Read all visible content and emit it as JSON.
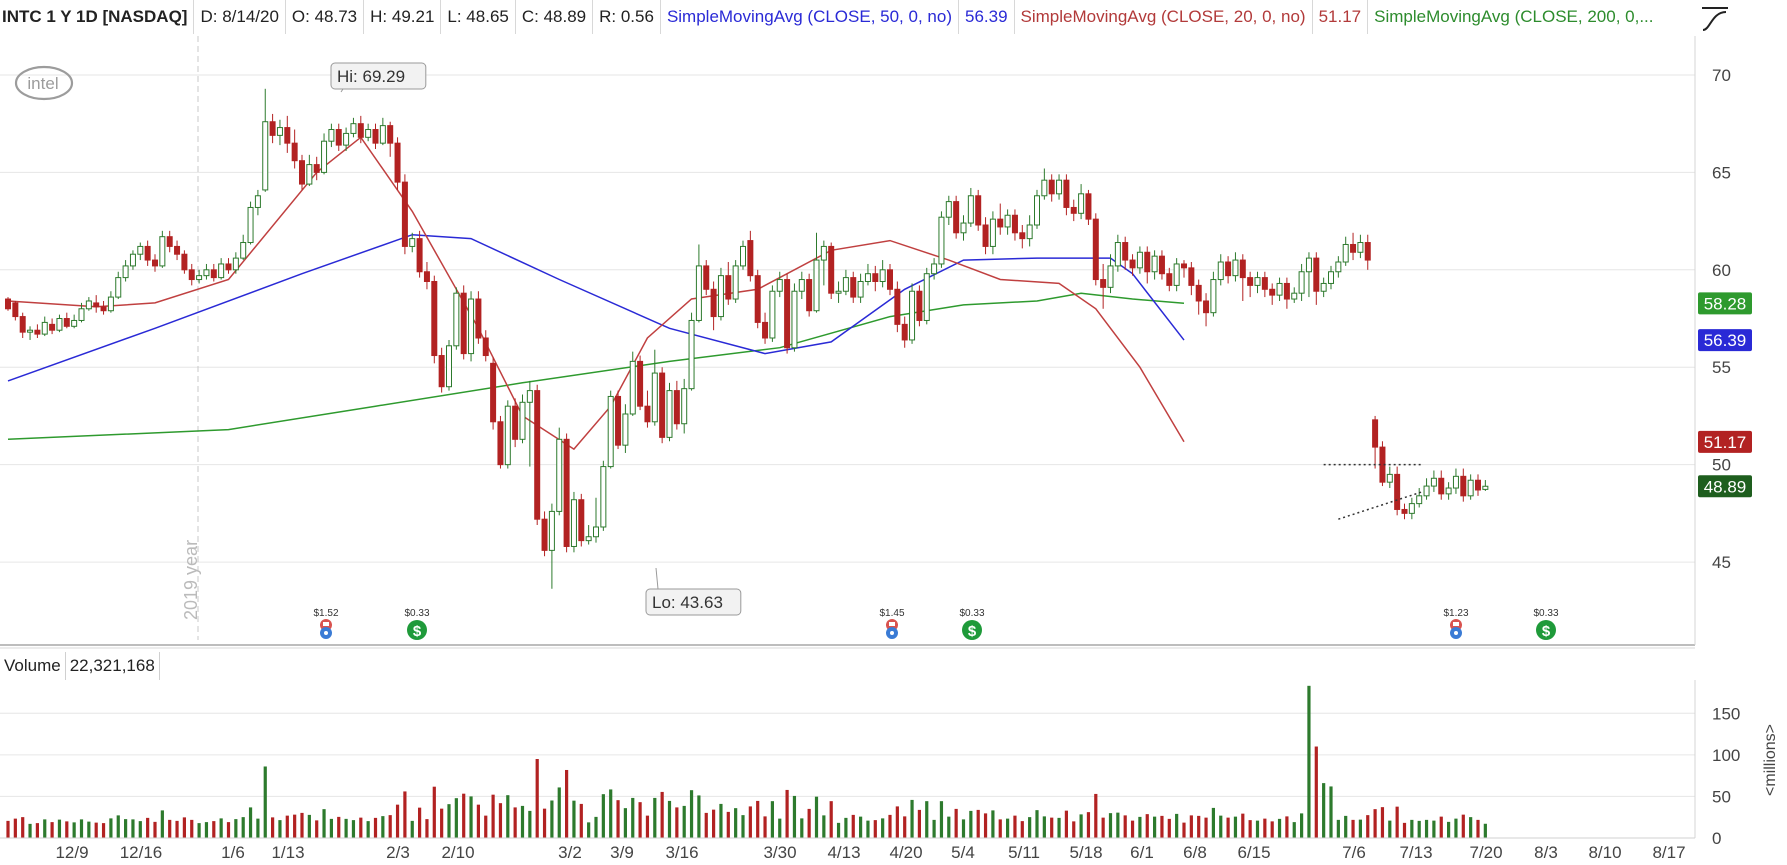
{
  "header": {
    "symbol": "INTC 1 Y 1D [NASDAQ]",
    "date": "D: 8/14/20",
    "open": "O: 48.73",
    "high": "H: 49.21",
    "low": "L: 48.65",
    "close": "C: 48.89",
    "range": "R: 0.56",
    "sma50_label": "SimpleMovingAvg (CLOSE, 50, 0, no)",
    "sma50_value": "56.39",
    "sma20_label": "SimpleMovingAvg (CLOSE, 20, 0, no)",
    "sma20_value": "51.17",
    "sma200_label": "SimpleMovingAvg (CLOSE, 200, 0,..."
  },
  "logo_text": "intel",
  "volume_header": {
    "label": "Volume",
    "value": "22,321,168"
  },
  "colors": {
    "up": "#2d7a2d",
    "down": "#b22222",
    "sma50": "#2a2ad6",
    "sma20": "#c04040",
    "sma200": "#2e9a2e",
    "grid": "#e6e6e6"
  },
  "chart_data": {
    "type": "candlestick",
    "price_axis": {
      "ticks": [
        45,
        50,
        55,
        60,
        65,
        70
      ],
      "range": [
        41,
        72
      ]
    },
    "volume_axis": {
      "ticks": [
        0,
        50,
        100,
        150
      ],
      "label": "<millions>",
      "range": [
        0,
        190
      ]
    },
    "x_axis": {
      "labels": [
        "12/9",
        "12/16",
        "1/6",
        "1/13",
        "2/3",
        "2/10",
        "3/2",
        "3/9",
        "3/16",
        "3/30",
        "4/13",
        "4/20",
        "5/4",
        "5/11",
        "5/18",
        "6/1",
        "6/8",
        "6/15",
        "7/6",
        "7/13",
        "7/20",
        "8/3",
        "8/10",
        "8/17"
      ]
    },
    "year_marker": "2019 year",
    "hi_label": "Hi: 69.29",
    "lo_label": "Lo: 43.63",
    "price_badges": [
      {
        "value": "58.28",
        "price": 58.28,
        "color": "#2e9a2e"
      },
      {
        "value": "56.39",
        "price": 56.39,
        "color": "#2a2ad6"
      },
      {
        "value": "51.17",
        "price": 51.17,
        "color": "#b22222"
      },
      {
        "value": "48.89",
        "price": 48.89,
        "color": "#1e5e1e"
      }
    ],
    "events": [
      {
        "label": "$1.52",
        "type": "earnings",
        "date": "1/23"
      },
      {
        "label": "$0.33",
        "type": "dividend",
        "date": "2/6"
      },
      {
        "label": "$1.45",
        "type": "earnings",
        "date": "4/23"
      },
      {
        "label": "$0.33",
        "type": "dividend",
        "date": "5/6"
      },
      {
        "label": "$1.23",
        "type": "earnings",
        "date": "7/23"
      },
      {
        "label": "$0.33",
        "type": "dividend",
        "date": "8/6"
      }
    ],
    "triangle": {
      "upper": 50.0,
      "lower_start": 47.2,
      "lower_end": 48.6
    },
    "sma50": [
      [
        0,
        54.3
      ],
      [
        20,
        57.0
      ],
      [
        40,
        59.8
      ],
      [
        55,
        61.8
      ],
      [
        63,
        61.6
      ],
      [
        75,
        59.5
      ],
      [
        90,
        57.0
      ],
      [
        103,
        55.7
      ],
      [
        112,
        56.3
      ],
      [
        122,
        59.0
      ],
      [
        130,
        60.5
      ],
      [
        140,
        60.6
      ],
      [
        150,
        60.6
      ],
      [
        153,
        59.8
      ],
      [
        160,
        56.39
      ]
    ],
    "sma20": [
      [
        0,
        58.4
      ],
      [
        12,
        58.1
      ],
      [
        20,
        58.3
      ],
      [
        30,
        59.5
      ],
      [
        42,
        65.0
      ],
      [
        48,
        66.8
      ],
      [
        55,
        63.0
      ],
      [
        64,
        57.0
      ],
      [
        70,
        52.5
      ],
      [
        77,
        50.8
      ],
      [
        82,
        53.0
      ],
      [
        87,
        56.5
      ],
      [
        93,
        58.5
      ],
      [
        102,
        59.0
      ],
      [
        112,
        61.0
      ],
      [
        120,
        61.5
      ],
      [
        128,
        60.5
      ],
      [
        135,
        59.5
      ],
      [
        143,
        59.3
      ],
      [
        148,
        58.0
      ],
      [
        154,
        55.0
      ],
      [
        160,
        51.17
      ]
    ],
    "sma200": [
      [
        0,
        51.3
      ],
      [
        30,
        51.8
      ],
      [
        50,
        53.0
      ],
      [
        70,
        54.2
      ],
      [
        90,
        55.3
      ],
      [
        105,
        56.0
      ],
      [
        120,
        57.6
      ],
      [
        130,
        58.2
      ],
      [
        140,
        58.4
      ],
      [
        146,
        58.8
      ],
      [
        153,
        58.5
      ],
      [
        160,
        58.28
      ]
    ],
    "candles": [
      [
        58.5,
        58.0,
        58.6,
        57.9
      ],
      [
        58.3,
        57.6,
        58.4,
        57.4
      ],
      [
        57.6,
        56.8,
        57.8,
        56.5
      ],
      [
        56.8,
        56.9,
        57.1,
        56.4
      ],
      [
        56.9,
        56.7,
        57.2,
        56.5
      ],
      [
        56.7,
        57.3,
        57.6,
        56.6
      ],
      [
        57.2,
        56.9,
        57.5,
        56.7
      ],
      [
        56.9,
        57.5,
        57.7,
        56.8
      ],
      [
        57.5,
        57.1,
        57.8,
        57.0
      ],
      [
        57.1,
        57.4,
        57.7,
        57.0
      ],
      [
        57.4,
        58.0,
        58.3,
        57.3
      ],
      [
        58.0,
        58.4,
        58.6,
        57.9
      ],
      [
        58.3,
        58.1,
        58.7,
        57.8
      ],
      [
        58.1,
        57.9,
        58.4,
        57.7
      ],
      [
        57.9,
        58.6,
        58.9,
        57.8
      ],
      [
        58.6,
        59.6,
        59.9,
        58.5
      ],
      [
        59.6,
        60.2,
        60.5,
        59.4
      ],
      [
        60.2,
        60.8,
        61.0,
        60.0
      ],
      [
        60.8,
        61.2,
        61.4,
        60.5
      ],
      [
        61.2,
        60.5,
        61.5,
        60.2
      ],
      [
        60.5,
        60.2,
        60.8,
        59.9
      ],
      [
        60.2,
        61.7,
        62.0,
        60.1
      ],
      [
        61.7,
        61.2,
        62.0,
        60.9
      ],
      [
        61.2,
        60.8,
        61.5,
        60.5
      ],
      [
        60.8,
        60.0,
        61.0,
        59.8
      ],
      [
        60.0,
        59.5,
        60.3,
        59.2
      ],
      [
        59.5,
        59.7,
        60.0,
        59.3
      ],
      [
        59.7,
        60.0,
        60.3,
        59.5
      ],
      [
        60.0,
        59.6,
        60.3,
        59.4
      ],
      [
        59.6,
        60.3,
        60.6,
        59.5
      ],
      [
        60.3,
        60.0,
        60.6,
        59.8
      ],
      [
        60.0,
        60.6,
        60.9,
        59.8
      ],
      [
        60.6,
        61.4,
        61.8,
        60.5
      ],
      [
        61.4,
        63.2,
        63.5,
        61.3
      ],
      [
        63.2,
        63.8,
        64.1,
        62.8
      ],
      [
        64.1,
        67.6,
        69.29,
        64.0
      ],
      [
        67.6,
        66.9,
        68.0,
        66.5
      ],
      [
        66.9,
        67.3,
        67.7,
        66.4
      ],
      [
        67.3,
        66.5,
        67.9,
        66.0
      ],
      [
        66.5,
        65.6,
        67.2,
        65.2
      ],
      [
        65.6,
        64.4,
        65.9,
        64.1
      ],
      [
        64.4,
        65.4,
        65.9,
        64.3
      ],
      [
        65.4,
        65.0,
        65.8,
        64.6
      ],
      [
        65.0,
        66.6,
        67.0,
        64.9
      ],
      [
        66.6,
        67.2,
        67.5,
        66.3
      ],
      [
        67.2,
        66.4,
        67.5,
        66.1
      ],
      [
        66.4,
        67.0,
        67.3,
        66.1
      ],
      [
        67.0,
        67.5,
        67.8,
        66.8
      ],
      [
        67.5,
        66.8,
        67.9,
        66.5
      ],
      [
        66.8,
        67.2,
        67.5,
        66.6
      ],
      [
        67.2,
        66.5,
        67.5,
        66.2
      ],
      [
        66.5,
        67.4,
        67.8,
        66.4
      ],
      [
        67.4,
        66.5,
        67.6,
        65.8
      ],
      [
        66.5,
        64.5,
        66.8,
        64.1
      ],
      [
        64.5,
        61.2,
        64.9,
        60.8
      ],
      [
        61.2,
        61.6,
        61.9,
        60.9
      ],
      [
        61.6,
        59.9,
        62.0,
        59.6
      ],
      [
        59.9,
        59.4,
        60.4,
        59.0
      ],
      [
        59.4,
        55.6,
        59.7,
        55.2
      ],
      [
        55.6,
        54.0,
        56.0,
        53.7
      ],
      [
        54.0,
        56.1,
        56.4,
        53.8
      ],
      [
        56.1,
        58.8,
        59.1,
        55.9
      ],
      [
        58.8,
        55.7,
        59.2,
        55.4
      ],
      [
        55.7,
        58.5,
        58.9,
        55.3
      ],
      [
        58.5,
        56.5,
        58.9,
        56.2
      ],
      [
        56.5,
        55.6,
        56.9,
        55.3
      ],
      [
        55.2,
        52.2,
        55.5,
        51.8
      ],
      [
        52.2,
        50.0,
        52.5,
        49.8
      ],
      [
        50.0,
        53.0,
        53.3,
        49.8
      ],
      [
        53.0,
        51.3,
        53.4,
        50.9
      ],
      [
        51.3,
        53.2,
        53.6,
        51.1
      ],
      [
        53.2,
        53.8,
        54.3,
        49.9
      ],
      [
        53.8,
        47.2,
        54.1,
        46.9
      ],
      [
        47.2,
        45.6,
        47.6,
        45.3
      ],
      [
        45.6,
        47.6,
        48.0,
        43.63
      ],
      [
        47.6,
        51.3,
        51.9,
        47.4
      ],
      [
        51.3,
        45.8,
        51.6,
        45.5
      ],
      [
        45.8,
        48.2,
        48.6,
        45.5
      ],
      [
        48.2,
        46.1,
        48.5,
        45.8
      ],
      [
        46.1,
        46.3,
        46.9,
        45.9
      ],
      [
        46.3,
        46.8,
        48.3,
        46.0
      ],
      [
        46.8,
        49.9,
        50.2,
        46.6
      ],
      [
        49.9,
        53.5,
        53.8,
        49.8
      ],
      [
        53.5,
        51.0,
        53.8,
        50.8
      ],
      [
        51.0,
        52.6,
        53.1,
        50.6
      ],
      [
        52.6,
        55.3,
        55.8,
        52.5
      ],
      [
        55.3,
        53.0,
        55.6,
        52.8
      ],
      [
        53.0,
        52.2,
        53.8,
        51.9
      ],
      [
        52.2,
        54.7,
        55.9,
        52.0
      ],
      [
        54.7,
        51.4,
        55.0,
        51.1
      ],
      [
        51.4,
        53.8,
        54.2,
        51.2
      ],
      [
        53.8,
        52.1,
        54.3,
        51.8
      ],
      [
        52.1,
        53.9,
        54.4,
        51.6
      ],
      [
        53.9,
        57.4,
        57.8,
        53.8
      ],
      [
        57.4,
        60.2,
        61.3,
        57.3
      ],
      [
        60.2,
        59.0,
        60.5,
        58.7
      ],
      [
        59.0,
        57.6,
        59.4,
        56.9
      ],
      [
        57.6,
        59.7,
        60.1,
        57.4
      ],
      [
        59.7,
        58.5,
        60.4,
        58.2
      ],
      [
        58.5,
        60.2,
        60.5,
        58.3
      ],
      [
        60.2,
        61.2,
        61.5,
        60.0
      ],
      [
        61.5,
        59.7,
        62.0,
        59.4
      ],
      [
        59.7,
        57.3,
        60.0,
        57.0
      ],
      [
        57.3,
        56.5,
        57.8,
        56.2
      ],
      [
        56.5,
        58.9,
        59.2,
        56.3
      ],
      [
        58.9,
        59.5,
        59.9,
        58.6
      ],
      [
        59.5,
        56.0,
        59.8,
        55.7
      ],
      [
        56.0,
        58.9,
        59.3,
        55.8
      ],
      [
        58.9,
        59.5,
        59.9,
        58.5
      ],
      [
        59.5,
        57.9,
        59.8,
        57.6
      ],
      [
        57.9,
        60.5,
        61.9,
        57.8
      ],
      [
        60.5,
        61.2,
        61.5,
        59.2
      ],
      [
        61.2,
        58.8,
        61.4,
        58.5
      ],
      [
        58.8,
        58.9,
        59.4,
        58.3
      ],
      [
        58.9,
        59.6,
        60.0,
        58.7
      ],
      [
        59.6,
        58.6,
        59.9,
        58.3
      ],
      [
        58.6,
        59.4,
        59.8,
        58.3
      ],
      [
        59.4,
        59.8,
        60.3,
        59.2
      ],
      [
        59.8,
        59.4,
        60.2,
        58.9
      ],
      [
        59.4,
        60.0,
        60.5,
        59.1
      ],
      [
        60.0,
        59.0,
        60.3,
        58.7
      ],
      [
        59.0,
        57.2,
        59.4,
        56.8
      ],
      [
        57.2,
        56.4,
        57.6,
        56.0
      ],
      [
        56.4,
        58.9,
        59.3,
        56.2
      ],
      [
        58.9,
        57.4,
        59.2,
        57.1
      ],
      [
        57.4,
        59.8,
        60.1,
        57.2
      ],
      [
        59.8,
        60.3,
        60.6,
        59.5
      ],
      [
        60.3,
        62.7,
        63.0,
        60.1
      ],
      [
        62.7,
        63.5,
        63.8,
        62.3
      ],
      [
        63.5,
        61.9,
        63.8,
        61.6
      ],
      [
        61.9,
        62.4,
        62.8,
        61.5
      ],
      [
        62.4,
        63.8,
        64.2,
        62.2
      ],
      [
        63.8,
        62.3,
        64.1,
        62.0
      ],
      [
        62.3,
        61.2,
        62.7,
        60.8
      ],
      [
        61.2,
        62.6,
        63.0,
        60.8
      ],
      [
        62.6,
        62.2,
        63.4,
        61.8
      ],
      [
        62.2,
        62.8,
        63.1,
        61.8
      ],
      [
        62.8,
        61.9,
        63.1,
        61.5
      ],
      [
        61.9,
        61.6,
        62.3,
        61.1
      ],
      [
        61.6,
        62.3,
        62.8,
        61.2
      ],
      [
        62.3,
        63.8,
        64.1,
        62.1
      ],
      [
        63.8,
        64.6,
        65.2,
        63.6
      ],
      [
        64.6,
        63.9,
        64.9,
        63.5
      ],
      [
        63.9,
        64.6,
        64.9,
        63.6
      ],
      [
        64.6,
        63.2,
        64.9,
        62.8
      ],
      [
        63.2,
        62.9,
        63.6,
        62.5
      ],
      [
        62.9,
        63.9,
        64.4,
        62.6
      ],
      [
        63.9,
        62.6,
        64.1,
        62.3
      ],
      [
        62.6,
        59.5,
        62.9,
        59.2
      ],
      [
        59.5,
        59.1,
        60.3,
        58.0
      ],
      [
        59.1,
        60.2,
        60.8,
        58.8
      ],
      [
        60.2,
        61.4,
        61.8,
        59.9
      ],
      [
        61.4,
        60.5,
        61.7,
        60.0
      ],
      [
        60.5,
        60.1,
        60.8,
        59.7
      ],
      [
        60.1,
        60.9,
        61.2,
        59.8
      ],
      [
        60.9,
        59.9,
        61.2,
        59.3
      ],
      [
        59.9,
        60.7,
        61.0,
        59.5
      ],
      [
        60.7,
        59.8,
        61.0,
        59.5
      ],
      [
        59.8,
        59.2,
        60.1,
        58.9
      ],
      [
        59.2,
        60.3,
        60.6,
        58.9
      ],
      [
        60.3,
        60.1,
        60.5,
        59.6
      ],
      [
        60.1,
        59.2,
        60.4,
        58.7
      ],
      [
        59.2,
        58.4,
        59.5,
        57.7
      ],
      [
        58.4,
        57.8,
        58.8,
        57.1
      ],
      [
        57.8,
        59.5,
        59.9,
        57.6
      ],
      [
        59.5,
        60.4,
        60.8,
        59.2
      ],
      [
        60.4,
        59.7,
        60.7,
        59.3
      ],
      [
        59.7,
        60.5,
        60.9,
        59.4
      ],
      [
        60.5,
        59.6,
        60.8,
        58.4
      ],
      [
        59.6,
        59.2,
        59.9,
        58.6
      ],
      [
        59.2,
        59.6,
        59.9,
        58.8
      ],
      [
        59.6,
        59.0,
        59.9,
        58.6
      ],
      [
        59.0,
        58.7,
        59.3,
        58.2
      ],
      [
        58.7,
        59.3,
        59.6,
        58.4
      ],
      [
        59.3,
        58.5,
        59.6,
        58.0
      ],
      [
        58.5,
        58.8,
        59.1,
        58.3
      ],
      [
        58.8,
        59.9,
        60.3,
        58.4
      ],
      [
        59.9,
        60.6,
        60.9,
        58.6
      ],
      [
        60.6,
        58.9,
        60.9,
        58.2
      ],
      [
        58.9,
        59.3,
        59.6,
        58.6
      ],
      [
        59.3,
        59.9,
        60.2,
        59.0
      ],
      [
        59.9,
        60.4,
        60.7,
        59.6
      ],
      [
        60.4,
        61.3,
        61.7,
        60.2
      ],
      [
        61.3,
        60.9,
        61.9,
        60.5
      ],
      [
        60.9,
        61.4,
        61.8,
        60.6
      ],
      [
        61.4,
        60.5,
        61.8,
        60.0
      ],
      [
        52.3,
        50.9,
        52.5,
        49.8
      ],
      [
        50.9,
        49.1,
        51.2,
        48.9
      ],
      [
        49.1,
        49.5,
        49.9,
        48.8
      ],
      [
        49.5,
        47.7,
        49.9,
        47.4
      ],
      [
        47.7,
        47.5,
        48.0,
        47.2
      ],
      [
        47.5,
        48.0,
        48.3,
        47.2
      ],
      [
        48.0,
        48.4,
        48.8,
        47.8
      ],
      [
        48.4,
        48.9,
        49.3,
        48.2
      ],
      [
        48.9,
        49.3,
        49.7,
        48.6
      ],
      [
        49.3,
        48.5,
        49.7,
        48.2
      ],
      [
        48.5,
        48.8,
        49.1,
        48.2
      ],
      [
        48.8,
        49.4,
        49.8,
        48.5
      ],
      [
        49.4,
        48.4,
        49.8,
        48.1
      ],
      [
        48.4,
        49.2,
        49.5,
        48.2
      ],
      [
        49.2,
        48.7,
        49.5,
        48.4
      ],
      [
        48.73,
        48.89,
        49.21,
        48.65
      ]
    ]
  }
}
